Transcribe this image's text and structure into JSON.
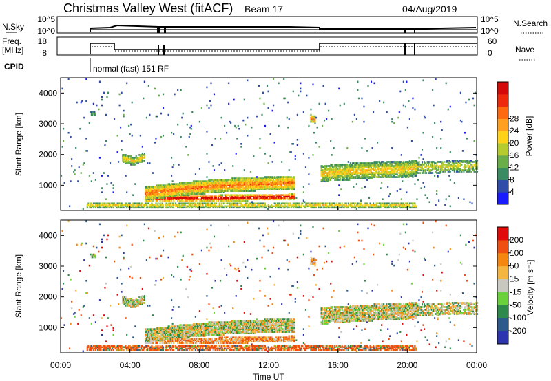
{
  "header": {
    "title": "Christmas Valley West (fitACF)",
    "beam": "Beam 17",
    "date": "04/Aug/2019"
  },
  "panels": {
    "nsky_label": "N.Sky",
    "nsky_ticks": [
      "10^5",
      "10^0"
    ],
    "nsearch_label": "N.Search",
    "nsearch_ticks": [
      "10^5",
      "10^0"
    ],
    "freq_label": "Freq.",
    "freq_unit": "[MHz]",
    "freq_ticks": [
      "18",
      "8"
    ],
    "nave_label": "Nave",
    "nave_ticks": [
      "60",
      "0"
    ],
    "cpid_label": "CPID",
    "cpid_text": "normal (fast) 151 RF"
  },
  "chart_data": [
    {
      "type": "heatmap",
      "name": "power",
      "ylabel": "Slant Range [km]",
      "ylim": [
        180,
        4500
      ],
      "yticks": [
        "1000",
        "2000",
        "3000",
        "4000"
      ],
      "xlim": [
        0,
        24
      ],
      "colorbar_label": "Power [dB]",
      "colorbar_ticks": [
        "4",
        "8",
        "12",
        "16",
        "20",
        "24",
        "28"
      ],
      "colors": [
        "#1a1aff",
        "#2e4ca8",
        "#3a8a62",
        "#6aae4a",
        "#b6cc2e",
        "#ffd21a",
        "#ffa020",
        "#ff6a10",
        "#ee2a0c",
        "#d40a0a"
      ]
    },
    {
      "type": "heatmap",
      "name": "velocity",
      "ylabel": "Slant Range [km]",
      "ylim": [
        180,
        4500
      ],
      "yticks": [
        "1000",
        "2000",
        "3000",
        "4000"
      ],
      "xlim": [
        0,
        24
      ],
      "xticks": [
        "00:00",
        "04:00",
        "08:00",
        "12:00",
        "16:00",
        "20:00",
        "00:00"
      ],
      "xlabel": "Time UT",
      "colorbar_label": "Velocity [m s⁻¹]",
      "colorbar_ticks": [
        "200",
        "100",
        "50",
        "15",
        "-15",
        "-50",
        "-100",
        "-200"
      ],
      "colors": [
        "#2c34b0",
        "#2c5a8a",
        "#2e8a4a",
        "#6ad13a",
        "#c8c8c0",
        "#f4b640",
        "#f5860f",
        "#ef4f10",
        "#e10a0a"
      ]
    }
  ]
}
